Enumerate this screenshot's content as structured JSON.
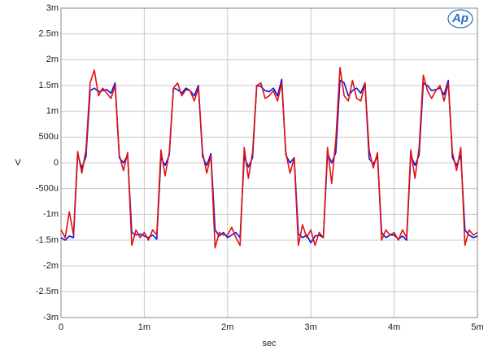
{
  "logo": "Ap",
  "chart_data": {
    "type": "line",
    "x_label": "sec",
    "y_label": "V",
    "x": [
      0,
      5e-05,
      0.0001,
      0.00015,
      0.0002,
      0.00025,
      0.0003,
      0.00035,
      0.0004,
      0.00045,
      0.0005,
      0.00055,
      0.0006,
      0.00065,
      0.0007,
      0.00075,
      0.0008,
      0.00085,
      0.0009,
      0.00095,
      0.001,
      0.00105,
      0.0011,
      0.00115,
      0.0012,
      0.00125,
      0.0013,
      0.00135,
      0.0014,
      0.00145,
      0.0015,
      0.00155,
      0.0016,
      0.00165,
      0.0017,
      0.00175,
      0.0018,
      0.00185,
      0.0019,
      0.00195,
      0.002,
      0.00205,
      0.0021,
      0.00215,
      0.0022,
      0.00225,
      0.0023,
      0.00235,
      0.0024,
      0.00245,
      0.0025,
      0.00255,
      0.0026,
      0.00265,
      0.0027,
      0.00275,
      0.0028,
      0.00285,
      0.0029,
      0.00295,
      0.003,
      0.00305,
      0.0031,
      0.00315,
      0.0032,
      0.00325,
      0.0033,
      0.00335,
      0.0034,
      0.00345,
      0.0035,
      0.00355,
      0.0036,
      0.00365,
      0.0037,
      0.00375,
      0.0038,
      0.00385,
      0.0039,
      0.00395,
      0.004,
      0.00405,
      0.0041,
      0.00415,
      0.0042,
      0.00425,
      0.0043,
      0.00435,
      0.0044,
      0.00445,
      0.0045,
      0.00455,
      0.0046,
      0.00465,
      0.0047,
      0.00475,
      0.0048,
      0.00485,
      0.0049,
      0.00495,
      0.005
    ],
    "series": [
      {
        "color": "#1010e0",
        "values": [
          -0.00145,
          -0.0015,
          -0.00142,
          -0.00145,
          0.00015,
          -0.0001,
          0.00012,
          0.0014,
          0.00145,
          0.00138,
          0.0014,
          0.00142,
          0.00135,
          0.00155,
          0.0001,
          0,
          0.00015,
          -0.00135,
          -0.0014,
          -0.00138,
          -0.00142,
          -0.00145,
          -0.0014,
          -0.00148,
          0.0001,
          -5e-05,
          0.00015,
          0.00145,
          0.00142,
          0.00135,
          0.00145,
          0.0014,
          0.0013,
          0.0015,
          0.00012,
          -5e-05,
          0.00018,
          -0.0013,
          -0.00142,
          -0.00135,
          -0.00145,
          -0.0014,
          -0.00135,
          -0.00145,
          0.00012,
          -8e-05,
          0.0001,
          0.0015,
          0.00148,
          0.0014,
          0.00138,
          0.00145,
          0.0013,
          0.00162,
          0.00015,
          0,
          0.0001,
          -0.00138,
          -0.00145,
          -0.0014,
          -0.00155,
          -0.00142,
          -0.0014,
          -0.00145,
          0.00018,
          0,
          0.0002,
          0.0016,
          0.00155,
          0.0013,
          0.0014,
          0.00145,
          0.00135,
          0.00155,
          8e-05,
          -2e-05,
          0.00012,
          -0.00135,
          -0.00145,
          -0.0014,
          -0.0014,
          -0.00148,
          -0.00142,
          -0.0015,
          0.00015,
          -5e-05,
          0.00015,
          0.00155,
          0.0015,
          0.0014,
          0.00142,
          0.00145,
          0.00132,
          0.0016,
          0.0001,
          -5e-05,
          0.00015,
          -0.0013,
          -0.0014,
          -0.00145,
          -0.00142
        ]
      },
      {
        "color": "#e01010",
        "values": [
          -0.0013,
          -0.00145,
          -0.00095,
          -0.0014,
          0.00022,
          -0.0002,
          0.00025,
          0.00155,
          0.0018,
          0.0013,
          0.00145,
          0.00135,
          0.00125,
          0.0015,
          0.00015,
          -0.00015,
          0.0002,
          -0.0016,
          -0.0013,
          -0.00145,
          -0.00135,
          -0.0015,
          -0.0013,
          -0.0014,
          0.00025,
          -0.00025,
          0.0002,
          0.00145,
          0.00155,
          0.0013,
          0.00142,
          0.0014,
          0.0012,
          0.00145,
          0.0002,
          -0.0002,
          0.00015,
          -0.00165,
          -0.00135,
          -0.0014,
          -0.0014,
          -0.00125,
          -0.00145,
          -0.0016,
          0.0003,
          -0.0003,
          0.0002,
          0.0015,
          0.00155,
          0.00125,
          0.0013,
          0.0014,
          0.0012,
          0.00155,
          0.0002,
          -0.0002,
          0.0001,
          -0.0016,
          -0.0012,
          -0.00145,
          -0.0013,
          -0.0016,
          -0.00135,
          -0.00145,
          0.0003,
          -0.0004,
          0.00045,
          0.00185,
          0.0013,
          0.0012,
          0.0016,
          0.00125,
          0.0012,
          0.00155,
          0.00025,
          -0.0001,
          0.0002,
          -0.0015,
          -0.0013,
          -0.0014,
          -0.00135,
          -0.0015,
          -0.0013,
          -0.00145,
          0.00025,
          -0.0003,
          0.0003,
          0.0017,
          0.0014,
          0.00125,
          0.0014,
          0.0015,
          0.0012,
          0.00155,
          0.0002,
          -0.00015,
          0.0003,
          -0.0016,
          -0.0013,
          -0.0014,
          -0.00135
        ]
      }
    ],
    "xlim": [
      0,
      0.005
    ],
    "xticks": [
      0,
      {
        "value": 0.001,
        "label": "1m"
      },
      {
        "value": 0.002,
        "label": "2m"
      },
      {
        "value": 0.003,
        "label": "3m"
      },
      {
        "value": 0.004,
        "label": "4m"
      },
      {
        "value": 0.005,
        "label": "5m"
      }
    ],
    "ylim": [
      -0.003,
      0.003
    ],
    "yticks": [
      {
        "value": -0.003,
        "label": "-3m"
      },
      {
        "value": -0.0025,
        "label": "-2.5m"
      },
      {
        "value": -0.002,
        "label": "-2m"
      },
      {
        "value": -0.0015,
        "label": "-1.5m"
      },
      {
        "value": -0.001,
        "label": "-1m"
      },
      {
        "value": -0.0005,
        "label": "-500u"
      },
      0,
      {
        "value": 0.0005,
        "label": "500u"
      },
      {
        "value": 0.001,
        "label": "1m"
      },
      {
        "value": 0.0015,
        "label": "1.5m"
      },
      {
        "value": 0.002,
        "label": "2m"
      },
      {
        "value": 0.0025,
        "label": "2.5m"
      },
      {
        "value": 0.003,
        "label": "3m"
      }
    ],
    "grid": true
  }
}
